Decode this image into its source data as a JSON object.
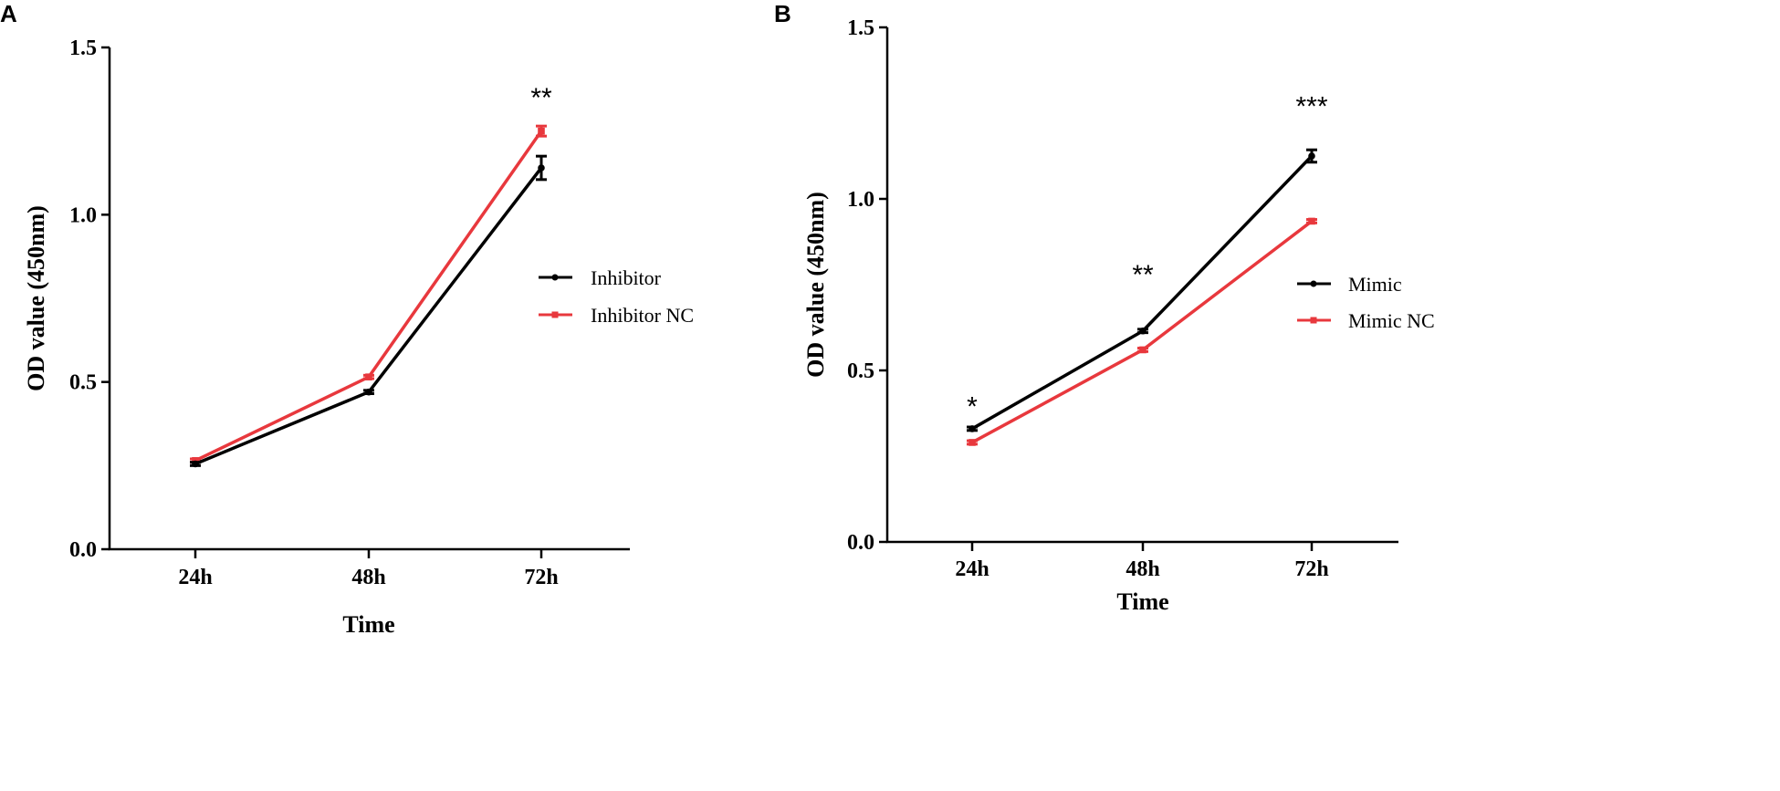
{
  "chart_data": [
    {
      "panel": "A",
      "type": "line",
      "title": "",
      "xlabel": "Time",
      "ylabel": "OD value (450nm)",
      "categories": [
        "24h",
        "48h",
        "72h"
      ],
      "ylim": [
        0,
        1.5
      ],
      "yticks": [
        0.0,
        0.5,
        1.0,
        1.5
      ],
      "ytick_labels": [
        "0.0",
        "0.5",
        "1.0",
        "1.5"
      ],
      "grid": false,
      "legend_position": "right",
      "series": [
        {
          "name": "Inhibitor",
          "color": "#000000",
          "marker": "circle",
          "values": [
            0.255,
            0.47,
            1.14
          ],
          "errors": [
            0.005,
            0.005,
            0.035
          ]
        },
        {
          "name": "Inhibitor NC",
          "color": "#e8383d",
          "marker": "square",
          "values": [
            0.265,
            0.515,
            1.25
          ],
          "errors": [
            0.005,
            0.005,
            0.015
          ]
        }
      ],
      "annotations": [
        {
          "category": "72h",
          "text": "**",
          "y": 1.355
        }
      ]
    },
    {
      "panel": "B",
      "type": "line",
      "title": "",
      "xlabel": "Time",
      "ylabel": "OD value (450nm)",
      "categories": [
        "24h",
        "48h",
        "72h"
      ],
      "ylim": [
        0,
        1.5
      ],
      "yticks": [
        0.0,
        0.5,
        1.0,
        1.5
      ],
      "ytick_labels": [
        "0.0",
        "0.5",
        "1.0",
        "1.5"
      ],
      "grid": false,
      "legend_position": "right",
      "series": [
        {
          "name": "Mimic",
          "color": "#000000",
          "marker": "circle",
          "values": [
            0.33,
            0.615,
            1.125
          ],
          "errors": [
            0.005,
            0.005,
            0.018
          ]
        },
        {
          "name": "Mimic NC",
          "color": "#e8383d",
          "marker": "square",
          "values": [
            0.29,
            0.56,
            0.935
          ],
          "errors": [
            0.005,
            0.005,
            0.005
          ]
        }
      ],
      "annotations": [
        {
          "category": "24h",
          "text": "*",
          "y": 0.4
        },
        {
          "category": "48h",
          "text": "**",
          "y": 0.785
        },
        {
          "category": "72h",
          "text": "***",
          "y": 1.275
        }
      ]
    }
  ]
}
